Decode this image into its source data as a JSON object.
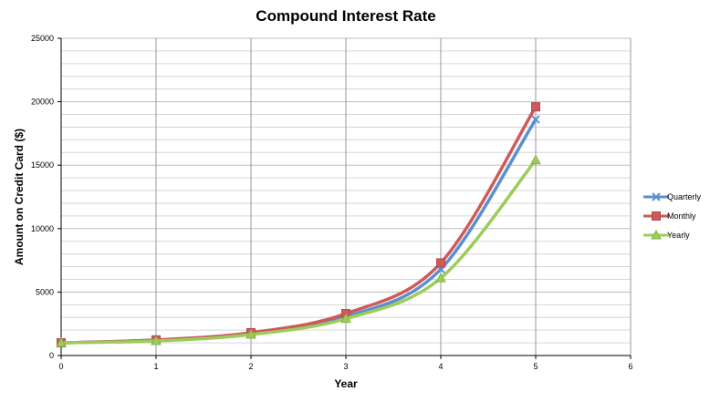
{
  "chart_data": {
    "type": "line",
    "title": "Compound Interest Rate",
    "xlabel": "Year",
    "ylabel": "Amount on Credit Card ($)",
    "xlim": [
      0,
      6
    ],
    "ylim": [
      0,
      25000
    ],
    "x_ticks": [
      "0",
      "1",
      "2",
      "3",
      "4",
      "5",
      "6"
    ],
    "y_ticks": [
      "0",
      "5000",
      "10000",
      "15000",
      "20000",
      "25000"
    ],
    "grid": true,
    "legend_position": "right",
    "x": [
      0,
      1,
      2,
      3,
      4,
      5
    ],
    "series": [
      {
        "name": "Quarterly",
        "color": "#5b8fd1",
        "marker": "x",
        "values": [
          1000,
          1200,
          1750,
          3050,
          6800,
          18600
        ]
      },
      {
        "name": "Monthly",
        "color": "#cd5b5b",
        "marker": "square",
        "values": [
          1000,
          1230,
          1800,
          3300,
          7300,
          19600
        ]
      },
      {
        "name": "Yearly",
        "color": "#9ccc5a",
        "marker": "triangle",
        "values": [
          1000,
          1150,
          1650,
          2900,
          6100,
          15400
        ]
      }
    ]
  }
}
